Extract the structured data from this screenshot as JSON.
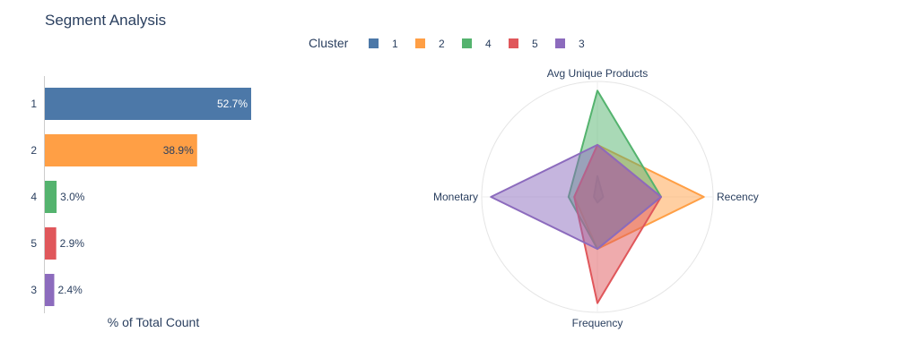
{
  "colors": {
    "1": "#4c78a8",
    "2": "#ff9f45",
    "4": "#54b36e",
    "5": "#e0575b",
    "3": "#8c6bbd"
  },
  "chart_data": [
    {
      "type": "bar",
      "orientation": "horizontal",
      "title": "Segment Analysis",
      "legend": {
        "title": "Cluster",
        "placement": "top-center",
        "entries": [
          "1",
          "2",
          "4",
          "5",
          "3"
        ]
      },
      "categories": [
        "1",
        "2",
        "4",
        "5",
        "3"
      ],
      "values": [
        52.7,
        38.9,
        3.0,
        2.9,
        2.4
      ],
      "data_labels": [
        "52.7%",
        "38.9%",
        "3.0%",
        "2.9%",
        "2.4%"
      ],
      "xlabel": "% of Total Count",
      "ylabel": "",
      "xlim": [
        0,
        100
      ],
      "grid": false
    },
    {
      "type": "radar",
      "axes": [
        "Avg Unique Products",
        "Recency",
        "Frequency",
        "Monetary"
      ],
      "range": [
        0,
        1
      ],
      "series": [
        {
          "name": "1",
          "values": [
            0.18,
            0.05,
            0.05,
            0.03
          ]
        },
        {
          "name": "2",
          "values": [
            0.45,
            0.92,
            0.45,
            0.2
          ]
        },
        {
          "name": "4",
          "values": [
            0.92,
            0.55,
            0.45,
            0.25
          ]
        },
        {
          "name": "5",
          "values": [
            0.45,
            0.55,
            0.92,
            0.2
          ]
        },
        {
          "name": "3",
          "values": [
            0.45,
            0.55,
            0.45,
            0.92
          ]
        }
      ]
    }
  ]
}
